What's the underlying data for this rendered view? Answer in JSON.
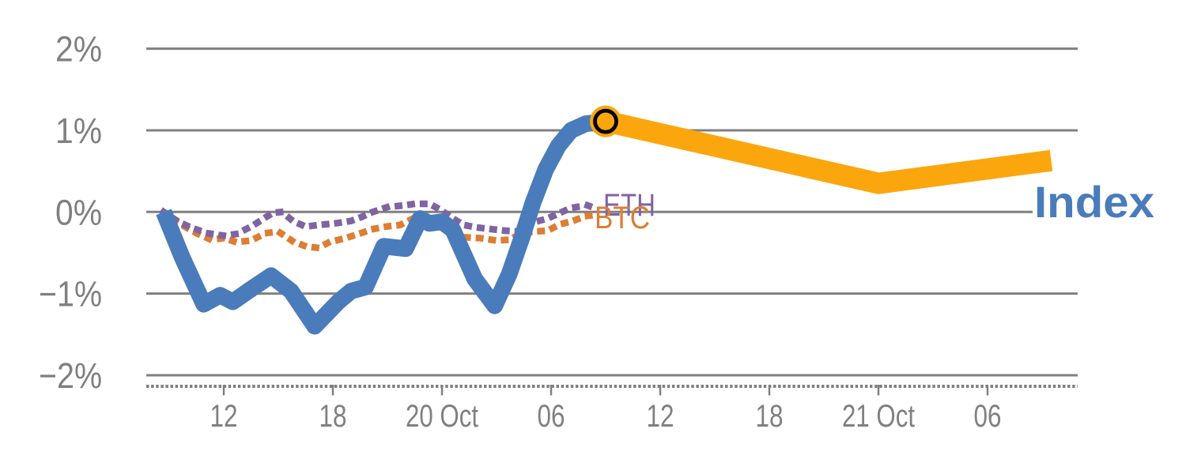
{
  "chart_data": {
    "type": "line",
    "title": "",
    "description": "Hourly percent returns: BTC and ETH (dotted) vs Index (thick blue), with highlighted point and thick orange Index projection",
    "time_unit": "hours; 0 = midnight before first tick; 24 = 20 Oct 00:00; 48 = 21 Oct 00:00",
    "x_axis": {
      "ticks": [
        {
          "t": 12,
          "label": "12"
        },
        {
          "t": 18,
          "label": "18"
        },
        {
          "t": 24,
          "label": "20 Oct"
        },
        {
          "t": 30,
          "label": "06"
        },
        {
          "t": 36,
          "label": "12"
        },
        {
          "t": 42,
          "label": "18"
        },
        {
          "t": 48,
          "label": "21 Oct"
        },
        {
          "t": 54,
          "label": "06"
        }
      ]
    },
    "y_axis": {
      "unit": "%",
      "range": [
        -2.35,
        2.0
      ],
      "ticks": [
        {
          "value": 2,
          "label": "2%"
        },
        {
          "value": 1,
          "label": "1%"
        },
        {
          "value": 0,
          "label": "0%"
        },
        {
          "value": -1,
          "label": "−1%"
        },
        {
          "value": -2,
          "label": "−2%"
        }
      ]
    },
    "grid": true,
    "legend_position": "inline-end-labels",
    "colors": {
      "grid": "#808080",
      "axis_text": "#808080",
      "index_blue": "#4A7CBB",
      "eth_purple": "#8064A2",
      "btc_orange": "#DD7E33",
      "forecast_orange": "#FCA60E",
      "marker_ring": "#000000"
    },
    "series": [
      {
        "name": "BTC",
        "style": "dotted",
        "color": "#DD7E33",
        "points": [
          [
            8.7,
            -0.02
          ],
          [
            9.7,
            -0.16
          ],
          [
            10.5,
            -0.26
          ],
          [
            11.3,
            -0.34
          ],
          [
            12.0,
            -0.32
          ],
          [
            12.7,
            -0.37
          ],
          [
            13.5,
            -0.35
          ],
          [
            14.3,
            -0.26
          ],
          [
            15.0,
            -0.24
          ],
          [
            15.8,
            -0.36
          ],
          [
            16.5,
            -0.42
          ],
          [
            17.2,
            -0.44
          ],
          [
            17.8,
            -0.37
          ],
          [
            18.7,
            -0.32
          ],
          [
            19.4,
            -0.27
          ],
          [
            20.2,
            -0.21
          ],
          [
            20.9,
            -0.18
          ],
          [
            21.7,
            -0.16
          ],
          [
            22.4,
            -0.08
          ],
          [
            23.3,
            -0.07
          ],
          [
            24.0,
            -0.1
          ],
          [
            24.6,
            -0.27
          ],
          [
            25.2,
            -0.31
          ],
          [
            26.1,
            -0.32
          ],
          [
            27.0,
            -0.35
          ],
          [
            27.7,
            -0.34
          ],
          [
            28.3,
            -0.27
          ],
          [
            29.0,
            -0.24
          ],
          [
            29.8,
            -0.23
          ],
          [
            30.5,
            -0.15
          ],
          [
            31.2,
            -0.11
          ],
          [
            31.9,
            -0.05
          ],
          [
            32.6,
            -0.03
          ]
        ]
      },
      {
        "name": "ETH",
        "style": "dotted",
        "color": "#8064A2",
        "points": [
          [
            8.7,
            0.0
          ],
          [
            9.5,
            -0.12
          ],
          [
            10.3,
            -0.2
          ],
          [
            11.1,
            -0.26
          ],
          [
            12.0,
            -0.29
          ],
          [
            12.7,
            -0.27
          ],
          [
            13.5,
            -0.18
          ],
          [
            14.0,
            -0.11
          ],
          [
            14.7,
            -0.01
          ],
          [
            15.2,
            0.0
          ],
          [
            15.8,
            -0.11
          ],
          [
            16.5,
            -0.18
          ],
          [
            17.2,
            -0.16
          ],
          [
            18.1,
            -0.14
          ],
          [
            19.0,
            -0.11
          ],
          [
            19.6,
            -0.06
          ],
          [
            20.2,
            0.0
          ],
          [
            21.0,
            0.06
          ],
          [
            21.9,
            0.08
          ],
          [
            22.5,
            0.1
          ],
          [
            23.3,
            0.1
          ],
          [
            23.9,
            0.03
          ],
          [
            24.6,
            -0.08
          ],
          [
            25.2,
            -0.16
          ],
          [
            25.9,
            -0.19
          ],
          [
            26.7,
            -0.21
          ],
          [
            27.5,
            -0.23
          ],
          [
            28.3,
            -0.24
          ],
          [
            29.0,
            -0.13
          ],
          [
            29.8,
            -0.08
          ],
          [
            30.6,
            0.0
          ],
          [
            31.1,
            0.05
          ],
          [
            32.0,
            0.08
          ],
          [
            32.5,
            0.04
          ]
        ]
      },
      {
        "name": "Index",
        "style": "solid",
        "color": "#4A7CBB",
        "points": [
          [
            8.7,
            0.0
          ],
          [
            9.7,
            -0.55
          ],
          [
            10.9,
            -1.13
          ],
          [
            11.8,
            -1.02
          ],
          [
            12.5,
            -1.1
          ],
          [
            13.6,
            -0.93
          ],
          [
            14.6,
            -0.78
          ],
          [
            15.7,
            -0.97
          ],
          [
            17.0,
            -1.4
          ],
          [
            18.3,
            -1.1
          ],
          [
            19.0,
            -0.97
          ],
          [
            19.8,
            -0.92
          ],
          [
            20.8,
            -0.42
          ],
          [
            22.0,
            -0.45
          ],
          [
            22.8,
            -0.08
          ],
          [
            23.3,
            -0.14
          ],
          [
            24.0,
            -0.12
          ],
          [
            24.6,
            -0.22
          ],
          [
            25.8,
            -0.82
          ],
          [
            26.9,
            -1.15
          ],
          [
            27.7,
            -0.76
          ],
          [
            28.4,
            -0.31
          ],
          [
            29.0,
            0.11
          ],
          [
            29.7,
            0.52
          ],
          [
            30.4,
            0.81
          ],
          [
            31.1,
            1.0
          ],
          [
            31.9,
            1.08
          ],
          [
            33.0,
            1.11
          ]
        ]
      },
      {
        "name": "Index projection",
        "style": "solid-thick",
        "color": "#FCA60E",
        "points": [
          [
            33.0,
            1.11
          ],
          [
            48.0,
            0.35
          ],
          [
            57.5,
            0.63
          ]
        ]
      }
    ],
    "marker": {
      "t": 33.0,
      "value": 1.11,
      "style": "orange-disc-black-ring"
    },
    "series_labels": [
      {
        "text": "ETH",
        "color": "#8064A2"
      },
      {
        "text": "BTC",
        "color": "#DD7E33"
      },
      {
        "text": "Index",
        "color": "#4A7CBB"
      }
    ]
  }
}
